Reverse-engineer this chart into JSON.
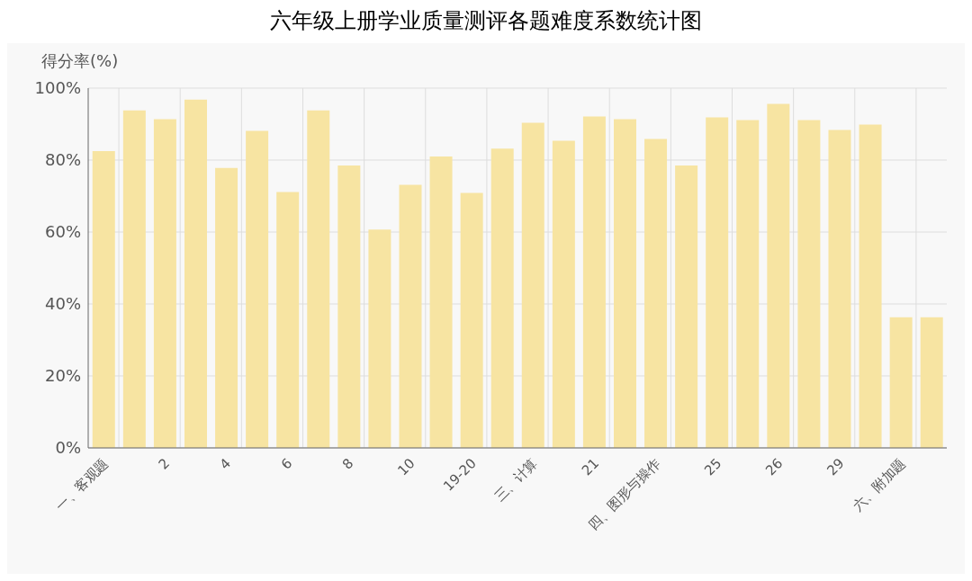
{
  "chart_data": {
    "type": "bar",
    "title": "六年级上册学业质量测评各题难度系数统计图",
    "ylabel": "得分率(%)",
    "categories": [
      "一、客观题",
      null,
      "2",
      null,
      "4",
      null,
      "6",
      null,
      "8",
      null,
      "10",
      null,
      "19-20",
      null,
      "三、计算",
      null,
      "21",
      null,
      "四、图形与操作",
      null,
      "25",
      null,
      "26",
      null,
      "29",
      null,
      "六、附加题",
      null
    ],
    "values": [
      82.5,
      93.8,
      91.4,
      96.8,
      77.8,
      88.1,
      71.1,
      93.8,
      78.5,
      60.7,
      73.1,
      81,
      70.9,
      83.2,
      90.4,
      85.4,
      92.1,
      91.4,
      85.9,
      78.5,
      91.9,
      91.1,
      95.6,
      91.1,
      88.4,
      89.9,
      36.3,
      36.3
    ],
    "color": "#f7e4a2",
    "ylim": [
      0,
      100
    ],
    "yticks": [
      {
        "value": 0,
        "label": "0%"
      },
      {
        "value": 20,
        "label": "20%"
      },
      {
        "value": 40,
        "label": "40%"
      },
      {
        "value": 60,
        "label": "60%"
      },
      {
        "value": 80,
        "label": "80%"
      },
      {
        "value": 100,
        "label": "100%"
      }
    ],
    "grid": true
  }
}
